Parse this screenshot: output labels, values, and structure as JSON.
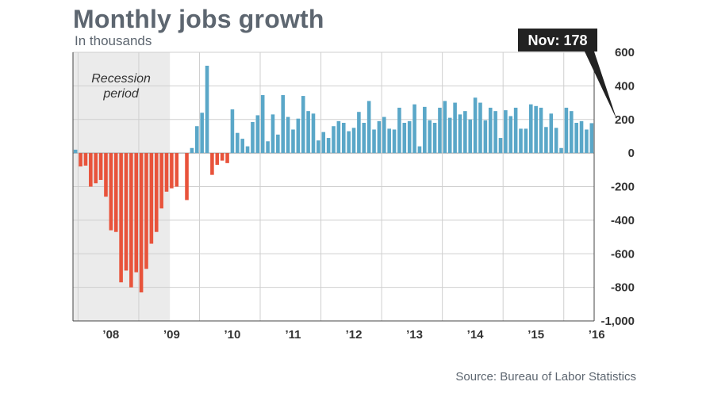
{
  "header": {
    "title": "Monthly jobs growth",
    "subtitle": "In thousands"
  },
  "footer": {
    "source": "Source: Bureau of Labor Statistics"
  },
  "colors": {
    "positive": "#5aa7c8",
    "negative": "#e8533b",
    "recession_shade": "#ebebeb",
    "callout": "#222222",
    "grid": "#cfcfcf",
    "axis": "#444444"
  },
  "chart_data": {
    "type": "bar",
    "title": "Monthly jobs growth",
    "subtitle": "In thousands",
    "xlabel": "",
    "ylabel": "",
    "ylim": [
      -1000,
      600
    ],
    "yticks": [
      600,
      400,
      200,
      0,
      -200,
      -400,
      -600,
      -800,
      -1000
    ],
    "ytick_labels": [
      "600",
      "400",
      "200",
      "0",
      "-200",
      "-400",
      "-600",
      "-800",
      "-1,000"
    ],
    "y_axis_side": "right",
    "grid": true,
    "x_start": "2007-12",
    "x_tick_labels": [
      {
        "label": "’08",
        "month": "2008-07"
      },
      {
        "label": "’09",
        "month": "2009-07"
      },
      {
        "label": "’10",
        "month": "2010-07"
      },
      {
        "label": "’11",
        "month": "2011-07"
      },
      {
        "label": "’12",
        "month": "2012-07"
      },
      {
        "label": "’13",
        "month": "2013-07"
      },
      {
        "label": "’14",
        "month": "2014-07"
      },
      {
        "label": "’15",
        "month": "2015-07"
      },
      {
        "label": "’16",
        "month": "2016-07"
      }
    ],
    "recession": {
      "label_line1": "Recession",
      "label_line2": "period",
      "start": "2007-12",
      "end": "2009-06"
    },
    "annotation": {
      "text": "Nov: 178",
      "month": "2016-11",
      "value": 178
    },
    "series": [
      {
        "values": [
          20,
          -80,
          -75,
          -200,
          -180,
          -160,
          -260,
          -460,
          -470,
          -770,
          -700,
          -800,
          -710,
          -830,
          -690,
          -540,
          -470,
          -330,
          -230,
          -210,
          -200,
          0,
          -280,
          30,
          160,
          240,
          520,
          -130,
          -70,
          -45,
          -60,
          260,
          120,
          85,
          40,
          185,
          225,
          345,
          70,
          230,
          110,
          345,
          215,
          140,
          205,
          340,
          250,
          235,
          75,
          125,
          90,
          160,
          190,
          180,
          130,
          150,
          245,
          180,
          310,
          140,
          190,
          215,
          145,
          140,
          270,
          180,
          190,
          290,
          40,
          275,
          195,
          180,
          270,
          310,
          210,
          300,
          230,
          250,
          200,
          330,
          300,
          195,
          270,
          250,
          90,
          255,
          220,
          270,
          145,
          145,
          290,
          280,
          270,
          155,
          235,
          150,
          30,
          270,
          250,
          180,
          190,
          140,
          178
        ]
      }
    ]
  }
}
